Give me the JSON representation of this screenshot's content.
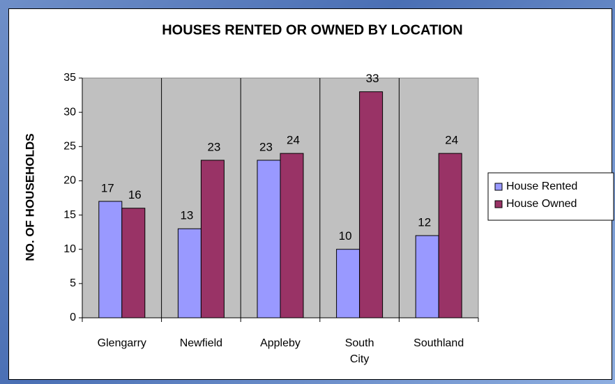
{
  "chart_data": {
    "type": "bar",
    "title": "HOUSES RENTED OR OWNED BY LOCATION",
    "y_label": "NO. OF HOUSEHOLDS",
    "categories": [
      "Glengarry",
      "Newfield",
      "Appleby",
      "South City",
      "Southland"
    ],
    "series": [
      {
        "name": "House Rented",
        "color": "#9999ff",
        "values": [
          17,
          13,
          23,
          10,
          12
        ]
      },
      {
        "name": "House Owned",
        "color": "#993366",
        "values": [
          16,
          23,
          24,
          33,
          24
        ]
      }
    ],
    "ylim": [
      0,
      35
    ],
    "yticks": [
      0,
      5,
      10,
      15,
      20,
      25,
      30,
      35
    ],
    "legend": "right",
    "plot_background": "#c0c0c0"
  }
}
